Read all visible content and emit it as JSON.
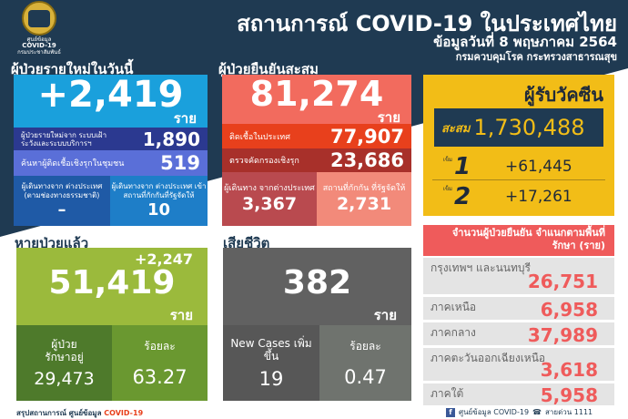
{
  "colors": {
    "navy": "#1f3a52",
    "blue": "#1aa0dc",
    "red": "#f26b5e",
    "yellow": "#f2bd17",
    "green": "#9bba3c",
    "gray": "#616161",
    "region_header": "#ef5b5b"
  },
  "logo": {
    "text": [
      "ศูนย์ข้อมูล",
      "COVID-19",
      "กรมประชาสัมพันธ์"
    ]
  },
  "header": {
    "title": "สถานการณ์ COVID-19 ในประเทศไทย",
    "date": "ข้อมูลวันที่ 8 พฤษภาคม 2564",
    "ministry": "กรมควบคุมโรค กระทรวงสาธารณสุข"
  },
  "unit": "ราย",
  "new_cases": {
    "label": "ผู้ป่วยรายใหม่ในวันนี้",
    "total": "+2,419",
    "surveillance": {
      "label": "ผู้ป่วยรายใหม่จาก ระบบเฝ้าระวังและระบบบริการฯ",
      "value": "1,890"
    },
    "active_search": {
      "label": "ค้นหาผู้ติดเชื้อเชิงรุกในชุมชน",
      "value": "519"
    },
    "natural_channel": {
      "label": "ผู้เดินทางจาก ต่างประเทศ (ตามช่องทางธรรมชาติ)",
      "value": "–"
    },
    "state_quarantine": {
      "label": "ผู้เดินทางจาก ต่างประเทศ เข้าสถานที่กักกันที่รัฐจัดให้",
      "value": "10"
    }
  },
  "cumulative": {
    "label": "ผู้ป่วยยืนยันสะสม",
    "total": "81,274",
    "domestic": {
      "label": "ติดเชื้อในประเทศ",
      "value": "77,907"
    },
    "proactive": {
      "label": "ตรวจคัดกรองเชิงรุก",
      "value": "23,686"
    },
    "abroad": {
      "label": "ผู้เดินทาง จากต่างประเทศ",
      "value": "3,367"
    },
    "quarantine": {
      "label": "สถานที่กักกัน ที่รัฐจัดให้",
      "value": "2,731"
    }
  },
  "vaccine": {
    "title": "ผู้รับวัคซีน",
    "cumulative_label": "สะสม",
    "cumulative": "1,730,488",
    "doses": [
      {
        "dose": "1",
        "label": "เข็ม",
        "value": "+61,445"
      },
      {
        "dose": "2",
        "label": "เข็ม",
        "value": "+17,261"
      }
    ]
  },
  "regions": {
    "title": "จำนวนผู้ป่วยยืนยัน จำแนกตามพื้นที่รักษา (ราย)",
    "items": [
      {
        "name": "กรุงเทพฯ และนนทบุรี",
        "value": "26,751"
      },
      {
        "name": "ภาคเหนือ",
        "value": "6,958"
      },
      {
        "name": "ภาคกลาง",
        "value": "37,989"
      },
      {
        "name": "ภาคตะวันออกเฉียงเหนือ",
        "value": "3,618"
      },
      {
        "name": "ภาคใต้",
        "value": "5,958"
      }
    ]
  },
  "recovered": {
    "label": "หายป่วยแล้ว",
    "increase": "+2,247",
    "total": "51,419",
    "in_treatment_label": "ผู้ป่วย รักษาอยู่",
    "in_treatment": "29,473",
    "percent_label": "ร้อยละ",
    "percent": "63.27"
  },
  "deaths": {
    "label": "เสียชีวิต",
    "total": "382",
    "new_label": "New Cases เพิ่มขึ้น",
    "new": "19",
    "percent_label": "ร้อยละ",
    "percent": "0.47"
  },
  "footer": {
    "left_prefix": "สรุปสถานการณ์ ศูนย์ข้อมูล",
    "left_brand": "COVID-19",
    "facebook": "ศูนย์ข้อมูล COVID-19",
    "hotline": "สายด่วน 1111"
  }
}
